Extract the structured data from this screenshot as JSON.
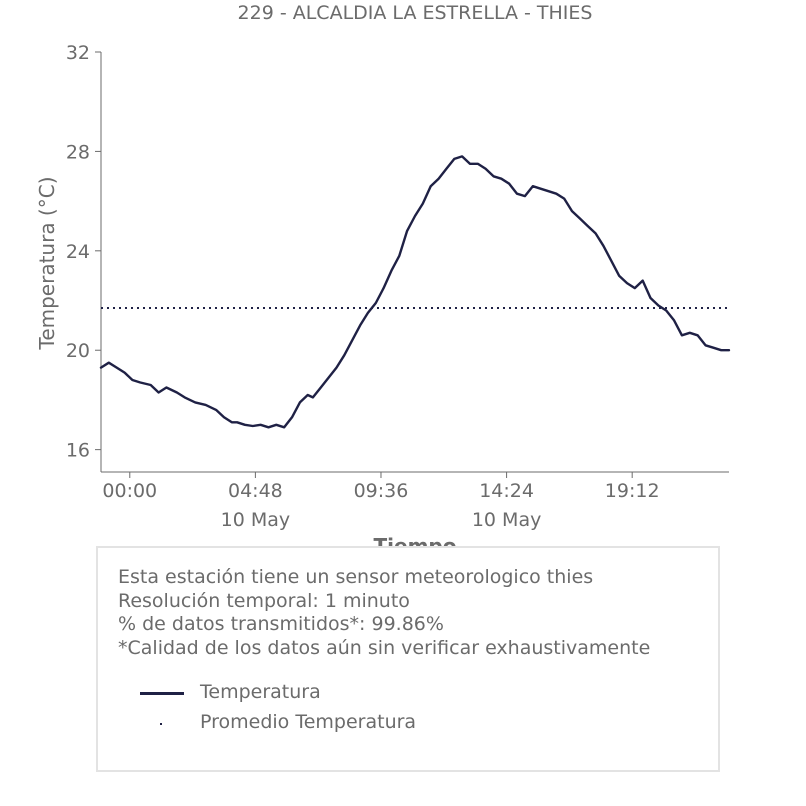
{
  "chart_data": {
    "type": "line",
    "title": "229 - ALCALDIA LA ESTRELLA - THIES",
    "xlabel": "Tiempo",
    "ylabel": "Temperatura (°C)",
    "ylim": [
      15.1,
      32
    ],
    "y_ticks": [
      "16",
      "20",
      "24",
      "28",
      "32"
    ],
    "x_ticks": [
      {
        "label": "00:00",
        "sublabel": ""
      },
      {
        "label": "04:48",
        "sublabel": "10 May"
      },
      {
        "label": "09:36",
        "sublabel": ""
      },
      {
        "label": "14:24",
        "sublabel": "10 May"
      },
      {
        "label": "19:12",
        "sublabel": ""
      }
    ],
    "x_tick_hours": [
      0,
      4.8,
      9.6,
      14.4,
      19.2
    ],
    "xlim_hours": [
      -1.1,
      22.9
    ],
    "grid": false,
    "series": [
      {
        "name": "Temperatura",
        "color": "#1f2145",
        "x_hours": [
          -1.1,
          -0.8,
          -0.5,
          -0.2,
          0.1,
          0.4,
          0.8,
          1.1,
          1.4,
          1.8,
          2.1,
          2.5,
          2.9,
          3.3,
          3.6,
          3.9,
          4.1,
          4.4,
          4.7,
          5.0,
          5.3,
          5.6,
          5.9,
          6.2,
          6.5,
          6.8,
          7.0,
          7.3,
          7.6,
          7.9,
          8.2,
          8.5,
          8.8,
          9.1,
          9.4,
          9.7,
          10.0,
          10.3,
          10.6,
          10.9,
          11.2,
          11.5,
          11.8,
          12.1,
          12.4,
          12.7,
          13.0,
          13.3,
          13.6,
          13.9,
          14.2,
          14.5,
          14.8,
          15.1,
          15.4,
          15.7,
          16.0,
          16.3,
          16.6,
          16.9,
          17.2,
          17.5,
          17.8,
          18.1,
          18.4,
          18.7,
          19.0,
          19.3,
          19.6,
          19.9,
          20.2,
          20.5,
          20.8,
          21.1,
          21.4,
          21.7,
          22.0,
          22.3,
          22.6,
          22.9
        ],
        "values": [
          19.3,
          19.5,
          19.3,
          19.1,
          18.8,
          18.7,
          18.6,
          18.3,
          18.5,
          18.3,
          18.1,
          17.9,
          17.8,
          17.6,
          17.3,
          17.1,
          17.1,
          17.0,
          16.95,
          17.0,
          16.9,
          17.0,
          16.9,
          17.3,
          17.9,
          18.2,
          18.1,
          18.5,
          18.9,
          19.3,
          19.8,
          20.4,
          21.0,
          21.5,
          21.9,
          22.5,
          23.2,
          23.8,
          24.8,
          25.4,
          25.9,
          26.6,
          26.9,
          27.3,
          27.7,
          27.8,
          27.5,
          27.5,
          27.3,
          27.0,
          26.9,
          26.7,
          26.3,
          26.2,
          26.6,
          26.5,
          26.4,
          26.3,
          26.1,
          25.6,
          25.3,
          25.0,
          24.7,
          24.2,
          23.6,
          23.0,
          22.7,
          22.5,
          22.8,
          22.1,
          21.8,
          21.6,
          21.2,
          20.6,
          20.7,
          20.6,
          20.2,
          20.1,
          20.0,
          20.0
        ]
      },
      {
        "name": "Promedio Temperatura",
        "color": "#1f2145",
        "style": "dotted",
        "value": 21.7
      }
    ]
  },
  "info": {
    "line1": "Esta estación tiene un sensor meteorologico thies",
    "line2": "Resolución temporal: 1 minuto",
    "line3": "% de datos transmitidos*: 99.86%",
    "line4": "*Calidad de los datos aún sin verificar exhaustivamente"
  },
  "legend": {
    "item1": "Temperatura",
    "item2": "Promedio Temperatura"
  },
  "colors": {
    "series": "#1f2145",
    "text": "#6b6b6b",
    "axis": "#6b6b6b",
    "box_border": "#e3e3e3"
  }
}
